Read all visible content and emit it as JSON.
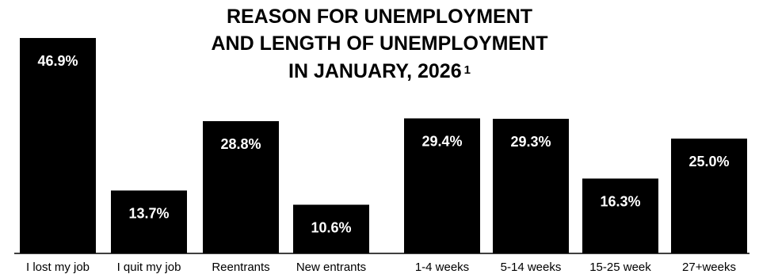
{
  "chart_data": {
    "type": "bar",
    "title_lines": [
      "REASON FOR UNEMPLOYMENT",
      "AND LENGTH OF UNEMPLOYMENT",
      "IN JANUARY, 2026"
    ],
    "title_footnote": "1",
    "categories": [
      "I lost my job",
      "I quit my job",
      "Reentrants",
      "New entrants",
      "1-4 weeks",
      "5-14 weeks",
      "15-25 week",
      "27+weeks"
    ],
    "values": [
      46.9,
      13.7,
      28.8,
      10.6,
      29.4,
      29.3,
      16.3,
      25.0
    ],
    "value_labels": [
      "46.9%",
      "13.7%",
      "28.8%",
      "10.6%",
      "29.4%",
      "29.3%",
      "16.3%",
      "25.0%"
    ],
    "groups": [
      {
        "categories": [
          "I lost my job",
          "I quit my job",
          "Reentrants",
          "New entrants"
        ]
      },
      {
        "categories": [
          "1-4 weeks",
          "5-14 weeks",
          "15-25 week",
          "27+weeks"
        ]
      }
    ],
    "ylim": [
      0,
      50
    ],
    "grid": false,
    "bar_color": "#000000",
    "label_color": "#ffffff",
    "axis_color": "#000000"
  }
}
